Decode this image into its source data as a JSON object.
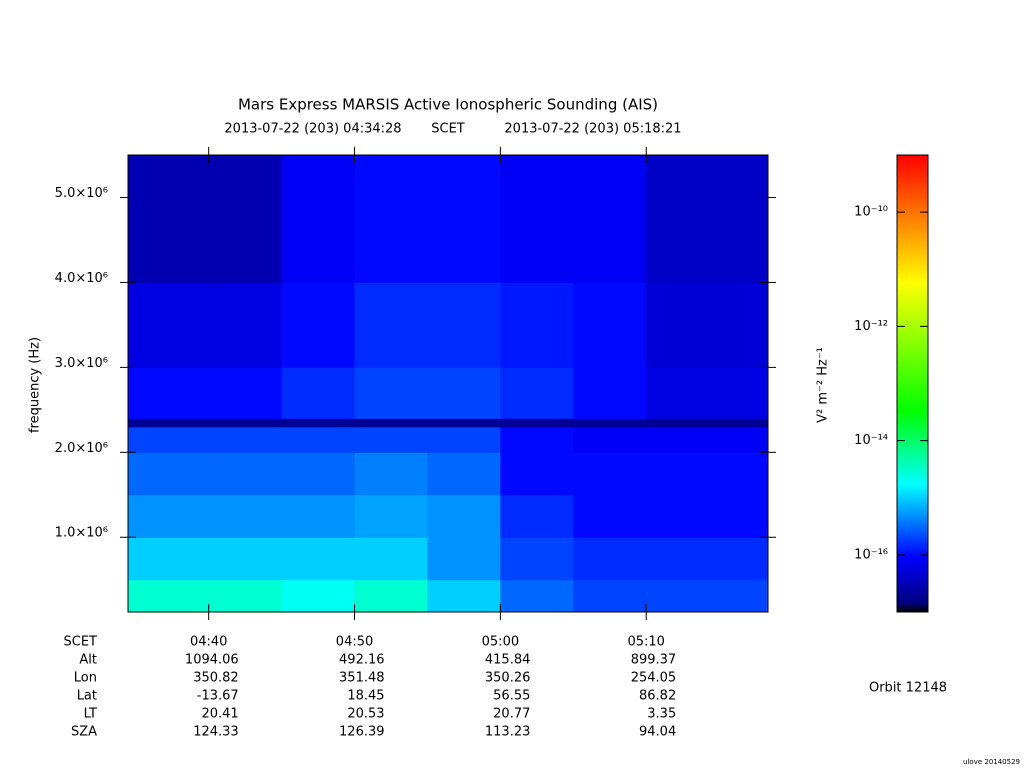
{
  "chart_data": {
    "type": "spectrogram",
    "title": "Mars Express MARSIS Active Ionospheric Sounding (AIS)",
    "start_time": "2013-07-22 (203) 04:34:28",
    "time_label": "SCET",
    "end_time": "2013-07-22 (203) 05:18:21",
    "y_label": "frequency (Hz)",
    "colorbar_label": "V² m⁻² Hz⁻¹",
    "orbit": "Orbit 12148",
    "credit": "ulove 20140529",
    "xlim": [
      "04:34:28",
      "05:18:21"
    ],
    "xticks": [
      "04:40",
      "04:50",
      "05:00",
      "05:10"
    ],
    "ylim": [
      120000,
      5500000
    ],
    "yticks": [
      {
        "value": 1000000,
        "label": "1.0×10⁶"
      },
      {
        "value": 2000000,
        "label": "2.0×10⁶"
      },
      {
        "value": 3000000,
        "label": "3.0×10⁶"
      },
      {
        "value": 4000000,
        "label": "4.0×10⁶"
      },
      {
        "value": 5000000,
        "label": "5.0×10⁶"
      }
    ],
    "zlim": [
      1e-17,
      1e-09
    ],
    "zscale": "log",
    "zticks": [
      {
        "value": 1e-10,
        "label": "10⁻¹⁰"
      },
      {
        "value": 1e-12,
        "label": "10⁻¹²"
      },
      {
        "value": 1e-14,
        "label": "10⁻¹⁴"
      },
      {
        "value": 1e-16,
        "label": "10⁻¹⁶"
      }
    ],
    "xbins": [
      "04:34:28",
      "04:40",
      "04:45",
      "04:50",
      "04:55",
      "05:00",
      "05:05",
      "05:10",
      "05:18:21"
    ],
    "ybins": [
      120000,
      500000,
      1000000,
      1500000,
      2000000,
      2300000,
      2400000,
      3000000,
      4000000,
      5500000
    ],
    "z": [
      [
        3e-15,
        3e-15,
        2e-15,
        3e-15,
        1e-15,
        3e-16,
        2e-16,
        2e-16
      ],
      [
        1e-15,
        1e-15,
        1e-15,
        1e-15,
        5e-16,
        2e-16,
        1.5e-16,
        1.5e-16
      ],
      [
        5e-16,
        5e-16,
        5e-16,
        6e-16,
        5e-16,
        1.5e-16,
        1e-16,
        1e-16
      ],
      [
        3e-16,
        3e-16,
        3e-16,
        4e-16,
        3e-16,
        1e-16,
        1e-16,
        1e-16
      ],
      [
        2e-16,
        2e-16,
        2e-16,
        2e-16,
        2e-16,
        1e-16,
        8e-17,
        8e-17
      ],
      [
        2e-17,
        2e-17,
        2e-17,
        2e-17,
        2e-17,
        2e-17,
        2e-17,
        2e-17
      ],
      [
        1e-16,
        1e-16,
        1.5e-16,
        2e-16,
        2e-16,
        1.5e-16,
        1e-16,
        6e-17
      ],
      [
        6e-17,
        6e-17,
        1e-16,
        1.5e-16,
        1.5e-16,
        1.2e-16,
        1e-16,
        5e-17
      ],
      [
        3e-17,
        3e-17,
        8e-17,
        1e-16,
        1e-16,
        8e-17,
        8e-17,
        4e-17
      ]
    ],
    "ephemeris": [
      {
        "label": "Alt",
        "values": [
          1094.06,
          492.16,
          415.84,
          899.37
        ]
      },
      {
        "label": "Lon",
        "values": [
          350.82,
          351.48,
          350.26,
          254.05
        ]
      },
      {
        "label": "Lat",
        "values": [
          -13.67,
          18.45,
          56.55,
          86.82
        ]
      },
      {
        "label": "LT",
        "values": [
          20.41,
          20.53,
          20.77,
          3.35
        ]
      },
      {
        "label": "SZA",
        "values": [
          124.33,
          126.39,
          113.23,
          94.04
        ]
      }
    ]
  }
}
